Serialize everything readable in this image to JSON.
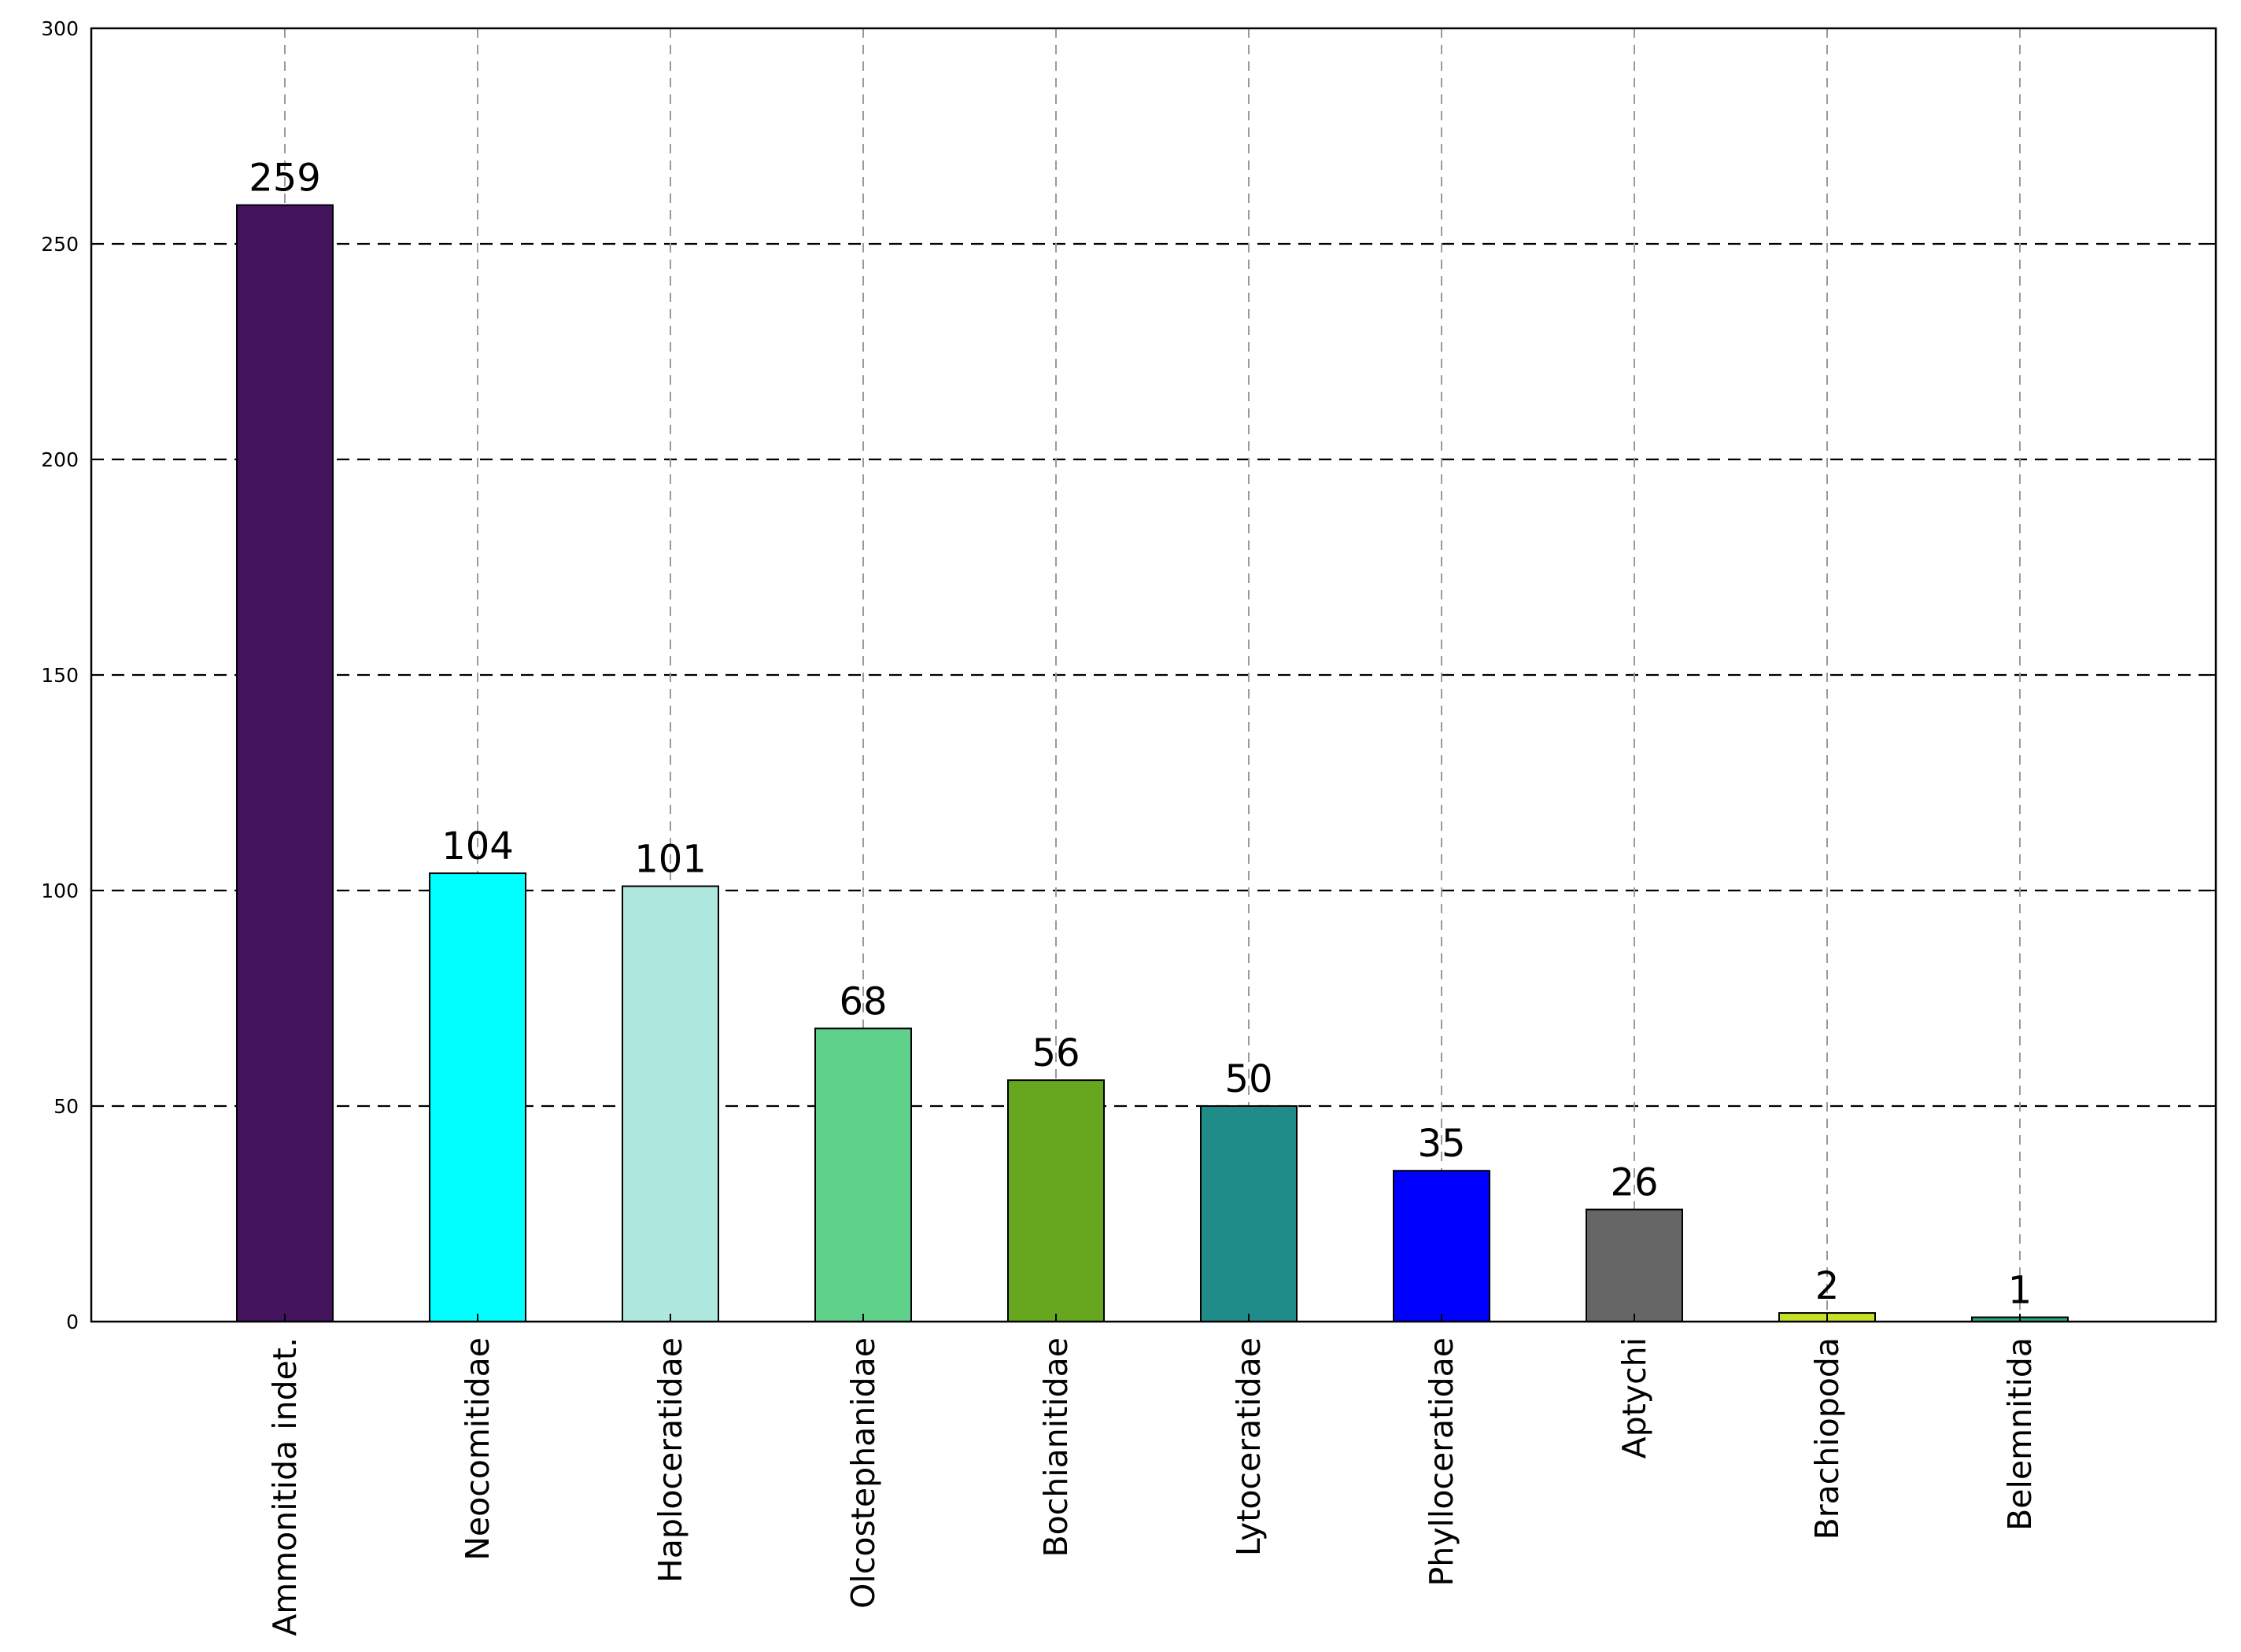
{
  "chart_data": {
    "type": "bar",
    "title": "",
    "xlabel": "",
    "ylabel": "",
    "categories": [
      "Ammonitida indet.",
      "Neocomitidae",
      "Haploceratidae",
      "Olcostephanidae",
      "Bochianitidae",
      "Lytoceratidae",
      "Phylloceratidae",
      "Aptychi",
      "Brachiopoda",
      "Belemnitida"
    ],
    "values": [
      259,
      104,
      101,
      68,
      56,
      50,
      35,
      26,
      2,
      1
    ],
    "data_labels": [
      "259",
      "104",
      "101",
      "68",
      "56",
      "50",
      "35",
      "26",
      "2",
      "1"
    ],
    "colors": [
      "#43135e",
      "#00ffff",
      "#aee8df",
      "#5fd18b",
      "#67a71f",
      "#1f8c89",
      "#0000ff",
      "#666666",
      "#c7e02a",
      "#2ca880"
    ],
    "ylim": [
      0,
      300
    ],
    "yticks": [
      0,
      50,
      100,
      150,
      200,
      250,
      300
    ],
    "ytick_labels": [
      "0",
      "50",
      "100",
      "150",
      "200",
      "250",
      "300"
    ],
    "grid": true,
    "legend": "none"
  }
}
